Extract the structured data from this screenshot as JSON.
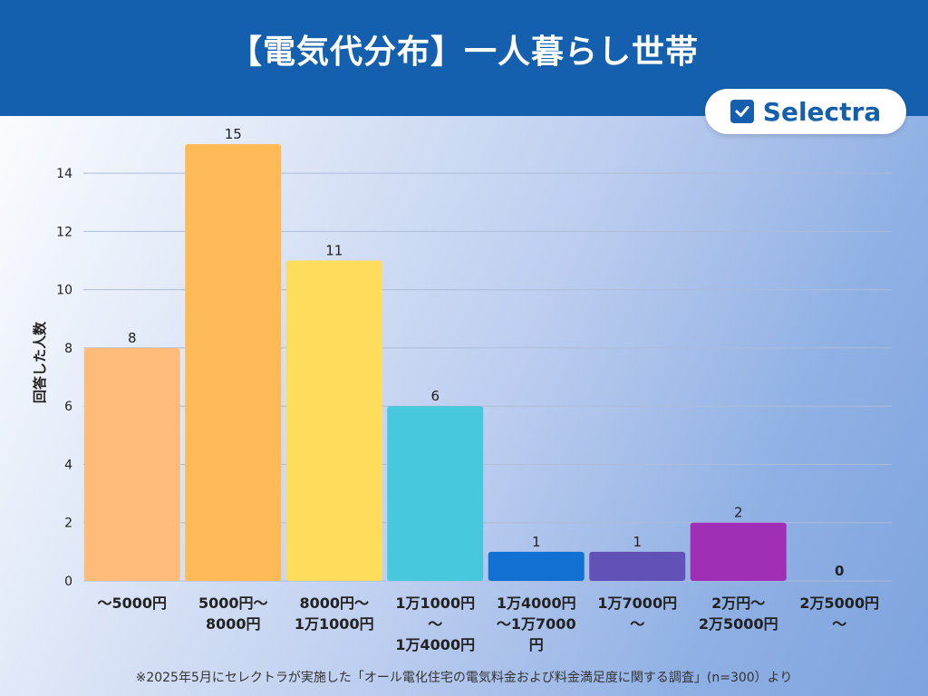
{
  "header": {
    "title": "【電気代分布】一人暮らし世帯"
  },
  "logo": {
    "text": "Selectra",
    "icon": "check-square-icon"
  },
  "footnote": "※2025年5月にセレクトラが実施した「オール電化住宅の電気料金および料金満足度に関する調査」(n=300）より",
  "colors": {
    "header": "#1560ae",
    "grid": "#aebcd6",
    "axis_text": "#222222"
  },
  "chart_data": {
    "type": "bar",
    "title": "",
    "xlabel": "",
    "ylabel": "回答した人数",
    "ylim": [
      0,
      15
    ],
    "yticks": [
      0,
      2,
      4,
      6,
      8,
      10,
      12,
      14
    ],
    "grid": true,
    "categories": [
      [
        "～5000円"
      ],
      [
        "5000円～",
        "8000円"
      ],
      [
        "8000円～",
        "1万1000円"
      ],
      [
        "1万1000円",
        "～",
        "1万4000円"
      ],
      [
        "1万4000円",
        "～1万7000",
        "円"
      ],
      [
        "1万7000円",
        "～"
      ],
      [
        "2万円～",
        "2万5000円"
      ],
      [
        "2万5000円",
        "～"
      ]
    ],
    "values": [
      8,
      15,
      11,
      6,
      1,
      1,
      2,
      0
    ],
    "bar_colors": [
      "#ffbb7a",
      "#ffba58",
      "#ffdd5c",
      "#47c8dc",
      "#1170d2",
      "#6252b8",
      "#a02fb5",
      "#a02fb5"
    ]
  }
}
